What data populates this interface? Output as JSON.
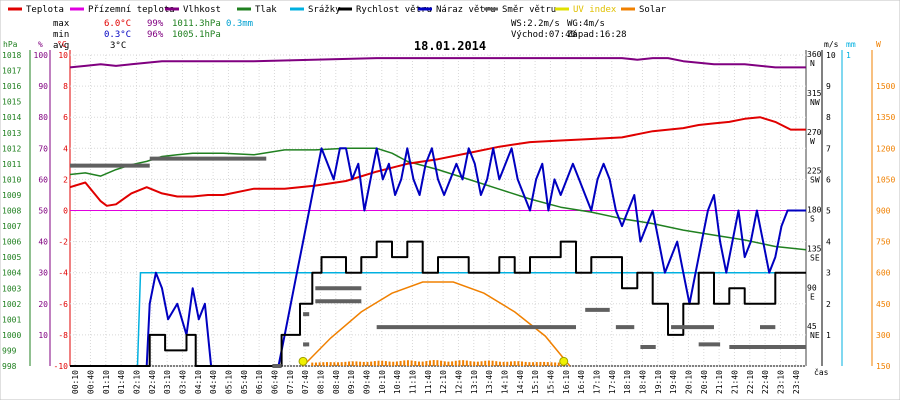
{
  "chart_data": {
    "type": "line",
    "title": "18.01.2014",
    "legend": [
      {
        "label": "Teplota",
        "color": "#e00000"
      },
      {
        "label": "Přízemní teplota",
        "color": "#e000e0"
      },
      {
        "label": "Vlhkost",
        "color": "#800080"
      },
      {
        "label": "Tlak",
        "color": "#208020"
      },
      {
        "label": "Srážky",
        "color": "#00b0e0"
      },
      {
        "label": "Rychlost větru",
        "color": "#000000"
      },
      {
        "label": "Náraz větru",
        "color": "#0000c0"
      },
      {
        "label": "Směr větru",
        "color": "#606060"
      },
      {
        "label": "UV index",
        "color": "#e0e000"
      },
      {
        "label": "Solar",
        "color": "#f08000"
      }
    ],
    "stats": {
      "max_label": "max",
      "max_temp": "6.0°C",
      "max_hum": "99%",
      "max_press": "1011.3hPa",
      "rain": "0.3mm",
      "min_label": "min",
      "min_temp": "0.3°C",
      "min_hum": "96%",
      "min_press": "1005.1hPa",
      "avg_label": "avg",
      "avg_temp": "3°C",
      "ws": "WS:2.2m/s",
      "wg": "WG:4m/s",
      "sunrise": "Východ:07:40",
      "sunset": "Západ:16:28"
    },
    "axes": {
      "hpa_label": "hPa",
      "hum_label": "%",
      "temp_label": "°C",
      "dir_labels": [
        "N",
        "NW",
        "W",
        "SW",
        "S",
        "SE",
        "E",
        "NE"
      ],
      "ms_label": "m/s",
      "mm_label": "mm",
      "w_label": "W",
      "x_label": "čas",
      "hpa_ticks": [
        "1018",
        "1017",
        "1016",
        "1015",
        "1014",
        "1013",
        "1012",
        "1011",
        "1010",
        "1009",
        "1008",
        "1007",
        "1006",
        "1005",
        "1004",
        "1003",
        "1002",
        "1001",
        "1000",
        "999",
        "998"
      ],
      "hum_ticks": [
        "100",
        "90",
        "80",
        "70",
        "60",
        "50",
        "40",
        "30",
        "20",
        "10"
      ],
      "temp_ticks": [
        "10",
        "8",
        "6",
        "4",
        "2",
        "0",
        "-2",
        "-4",
        "-6",
        "-8",
        "-10"
      ],
      "dir_ticks": [
        "360",
        "315",
        "270",
        "225",
        "180",
        "135",
        "90",
        "45"
      ],
      "ms_ticks": [
        "10",
        "9",
        "8",
        "7",
        "6",
        "5",
        "4",
        "3",
        "2",
        "1"
      ],
      "mm_ticks": [
        "1"
      ],
      "w_ticks": [
        "1500",
        "1350",
        "1200",
        "1050",
        "900",
        "750",
        "600",
        "450",
        "300",
        "150"
      ],
      "x_ticks": [
        "00:10",
        "00:40",
        "01:10",
        "01:40",
        "02:10",
        "02:40",
        "03:10",
        "03:40",
        "04:10",
        "04:40",
        "05:10",
        "05:40",
        "06:10",
        "06:40",
        "07:10",
        "07:40",
        "08:10",
        "08:40",
        "09:10",
        "09:40",
        "10:10",
        "10:40",
        "11:10",
        "11:40",
        "12:10",
        "12:40",
        "13:10",
        "13:40",
        "14:10",
        "14:40",
        "15:10",
        "15:40",
        "16:10",
        "16:40",
        "17:10",
        "17:40",
        "18:10",
        "18:40",
        "19:10",
        "19:40",
        "20:10",
        "20:40",
        "21:10",
        "21:40",
        "22:10",
        "22:40",
        "23:10",
        "23:40"
      ]
    },
    "x_range_hours": [
      0,
      24
    ],
    "temp_ylim": [
      -10,
      10
    ],
    "series": [
      {
        "name": "Teplota",
        "unit": "°C",
        "x": [
          0,
          0.5,
          1,
          1.2,
          1.5,
          2,
          2.5,
          3,
          3.5,
          4,
          4.5,
          5,
          6,
          7,
          8,
          9,
          10,
          11,
          12,
          13,
          14,
          15,
          16,
          17,
          18,
          19,
          20,
          20.5,
          21,
          21.5,
          22,
          22.5,
          23,
          23.5,
          24
        ],
        "y": [
          1.5,
          1.8,
          0.6,
          0.3,
          0.4,
          1.1,
          1.5,
          1.1,
          0.9,
          0.9,
          1.0,
          1.0,
          1.4,
          1.4,
          1.6,
          1.9,
          2.5,
          3.0,
          3.3,
          3.7,
          4.1,
          4.4,
          4.5,
          4.6,
          4.7,
          5.1,
          5.3,
          5.5,
          5.6,
          5.7,
          5.9,
          6.0,
          5.7,
          5.2,
          5.2
        ]
      },
      {
        "name": "Přízemní teplota",
        "unit": "°C",
        "x": [
          0,
          24
        ],
        "y": [
          0,
          0
        ]
      },
      {
        "name": "Vlhkost",
        "unit": "%",
        "x": [
          0,
          0.5,
          1,
          1.5,
          2,
          2.5,
          3,
          6,
          10,
          14,
          16,
          18,
          18.5,
          19,
          19.5,
          20,
          20.5,
          21,
          21.5,
          22,
          23,
          24
        ],
        "y": [
          96,
          96.5,
          97,
          96.5,
          97,
          97.5,
          98,
          98,
          99,
          99,
          99,
          99,
          98.5,
          99,
          99,
          98,
          97.5,
          97,
          97,
          97,
          96,
          96
        ]
      },
      {
        "name": "Tlak",
        "unit": "hPa",
        "x": [
          0,
          0.5,
          1,
          1.5,
          2,
          2.5,
          3,
          3.5,
          4,
          5,
          6,
          7,
          8,
          9,
          10,
          10.5,
          11,
          12,
          13,
          14,
          15,
          16,
          17,
          18,
          19,
          20,
          21,
          22,
          23,
          24
        ],
        "y": [
          1009.7,
          1009.8,
          1009.6,
          1010.0,
          1010.3,
          1010.5,
          1010.8,
          1010.9,
          1011.0,
          1011.0,
          1010.9,
          1011.2,
          1011.2,
          1011.3,
          1011.3,
          1011.0,
          1010.5,
          1010.0,
          1009.4,
          1008.8,
          1008.2,
          1007.7,
          1007.4,
          1007.0,
          1006.7,
          1006.3,
          1006.0,
          1005.7,
          1005.3,
          1005.1
        ]
      },
      {
        "name": "Srážky",
        "unit": "mm",
        "x": [
          0,
          2.2,
          2.3,
          24
        ],
        "y": [
          0,
          0,
          0.3,
          0.3
        ]
      },
      {
        "name": "Rychlost větru",
        "unit": "m/s",
        "x": [
          0,
          2.6,
          2.6,
          3.1,
          3.1,
          3.8,
          3.8,
          4.1,
          4.1,
          6.9,
          6.9,
          7.5,
          7.5,
          7.9,
          7.9,
          8.2,
          8.2,
          9,
          9,
          9.5,
          9.5,
          10,
          10,
          10.5,
          10.5,
          11,
          11,
          11.5,
          11.5,
          12,
          12,
          13,
          13,
          14,
          14,
          14.5,
          14.5,
          15,
          15,
          16,
          16,
          16.5,
          16.5,
          17,
          17,
          18,
          18,
          18.5,
          18.5,
          19,
          19,
          19.5,
          19.5,
          20,
          20,
          20.5,
          20.5,
          21,
          21,
          21.5,
          21.5,
          22,
          22,
          23,
          23,
          24
        ],
        "y": [
          0,
          0,
          1,
          1,
          0.5,
          0.5,
          1,
          1,
          0,
          0,
          1,
          1,
          2,
          2,
          3,
          3,
          3.5,
          3.5,
          3,
          3,
          3.5,
          3.5,
          4,
          4,
          3.5,
          3.5,
          4,
          4,
          3,
          3,
          3.5,
          3.5,
          3,
          3,
          3.5,
          3.5,
          3,
          3,
          3.5,
          3.5,
          4,
          4,
          3,
          3,
          3.5,
          3.5,
          2.5,
          2.5,
          3,
          3,
          2,
          2,
          1,
          1,
          2,
          2,
          3,
          3,
          2,
          2,
          2.5,
          2.5,
          2,
          2,
          3,
          3
        ]
      },
      {
        "name": "Náraz větru",
        "unit": "m/s",
        "x": [
          0,
          2.5,
          2.6,
          2.8,
          3,
          3.2,
          3.5,
          3.8,
          4,
          4.2,
          4.4,
          4.6,
          6.8,
          7,
          7.2,
          7.4,
          7.6,
          7.8,
          8,
          8.2,
          8.4,
          8.6,
          8.8,
          9,
          9.2,
          9.4,
          9.6,
          9.8,
          10,
          10.2,
          10.4,
          10.6,
          10.8,
          11,
          11.2,
          11.4,
          11.6,
          11.8,
          12,
          12.2,
          12.4,
          12.6,
          12.8,
          13,
          13.2,
          13.4,
          13.6,
          13.8,
          14,
          14.2,
          14.4,
          14.6,
          14.8,
          15,
          15.2,
          15.4,
          15.6,
          15.8,
          16,
          16.2,
          16.4,
          16.6,
          16.8,
          17,
          17.2,
          17.4,
          17.6,
          17.8,
          18,
          18.2,
          18.4,
          18.6,
          18.8,
          19,
          19.2,
          19.4,
          19.6,
          19.8,
          20,
          20.2,
          20.4,
          20.6,
          20.8,
          21,
          21.2,
          21.4,
          21.6,
          21.8,
          22,
          22.2,
          22.4,
          22.6,
          22.8,
          23,
          23.2,
          23.4,
          23.6,
          24
        ],
        "y": [
          0,
          0,
          2,
          3,
          2.5,
          1.5,
          2,
          1,
          2.5,
          1.5,
          2,
          0,
          0,
          1,
          2,
          3,
          4,
          5,
          6,
          7,
          6.5,
          6,
          7,
          7,
          6,
          6.5,
          5,
          6,
          7,
          6,
          6.5,
          5.5,
          6,
          7,
          6,
          5.5,
          6.5,
          7,
          6,
          5.5,
          6,
          6.5,
          6,
          7,
          6.5,
          5.5,
          6,
          7,
          6,
          6.5,
          7,
          6,
          5.5,
          5,
          6,
          6.5,
          5,
          6,
          5.5,
          6,
          6.5,
          6,
          5.5,
          5,
          6,
          6.5,
          6,
          5,
          4.5,
          5,
          5.5,
          4,
          4.5,
          5,
          4,
          3,
          3.5,
          4,
          3,
          2,
          3,
          4,
          5,
          5.5,
          4,
          3,
          4,
          5,
          3.5,
          4,
          5,
          4,
          3,
          3.5,
          4.5,
          5,
          5,
          5
        ]
      },
      {
        "name": "Směr větru",
        "unit": "°",
        "segments": [
          [
            0,
            2.6,
            232
          ],
          [
            2.6,
            6.4,
            240
          ],
          [
            6.6,
            6.9,
            0
          ],
          [
            7.6,
            7.8,
            60
          ],
          [
            7.6,
            7.8,
            25
          ],
          [
            8.0,
            9.5,
            90
          ],
          [
            8.0,
            9.5,
            75
          ],
          [
            10.0,
            16.5,
            45
          ],
          [
            16.8,
            17.6,
            65
          ],
          [
            17.8,
            18.4,
            45
          ],
          [
            18.6,
            19.1,
            22
          ],
          [
            19.6,
            21.0,
            45
          ],
          [
            20.5,
            21.2,
            25
          ],
          [
            21.5,
            24,
            22
          ],
          [
            22.5,
            23.0,
            45
          ]
        ]
      },
      {
        "name": "UV index",
        "unit": "",
        "points": [
          [
            7.6,
            0
          ],
          [
            16.1,
            0
          ]
        ]
      },
      {
        "name": "Solar",
        "unit": "W",
        "x": [
          7.6,
          8.5,
          9.5,
          10.5,
          11.5,
          12.5,
          13.5,
          14.5,
          15.5,
          16.3
        ],
        "y": [
          0,
          150,
          290,
          390,
          450,
          450,
          390,
          290,
          160,
          0
        ]
      }
    ]
  }
}
